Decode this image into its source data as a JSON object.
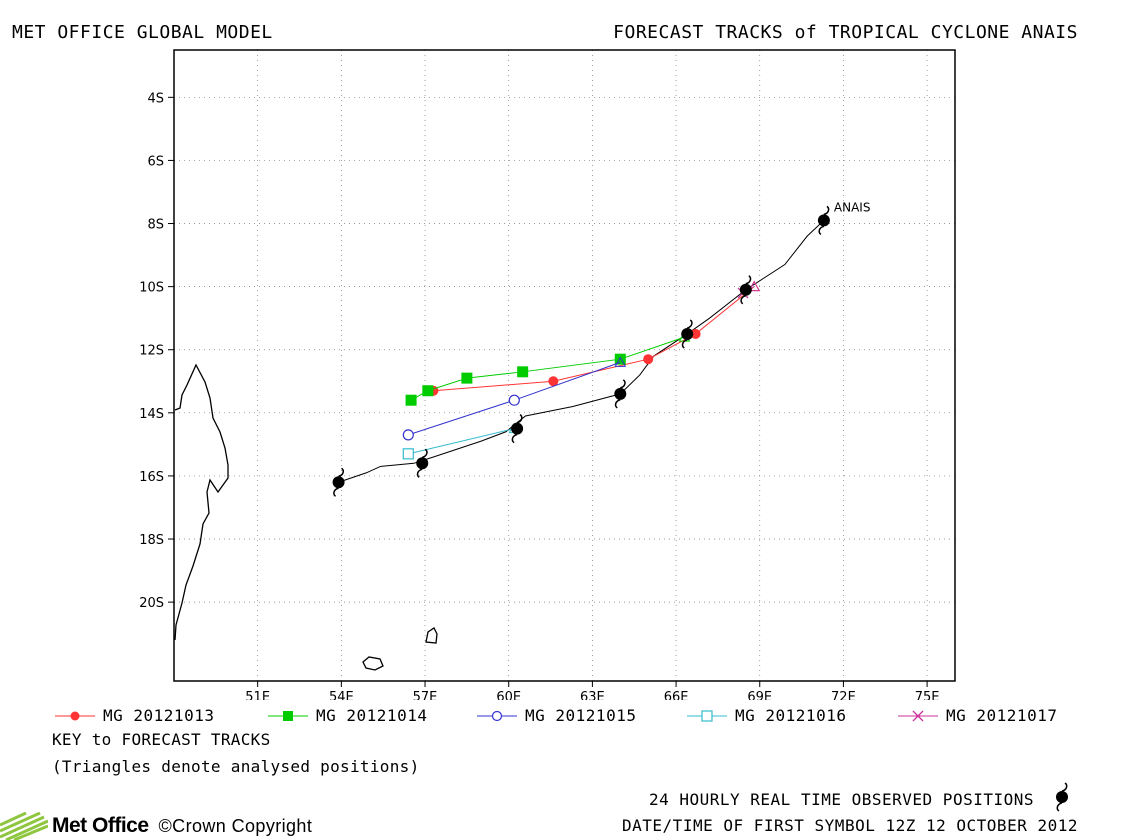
{
  "header": {
    "left_title": "MET OFFICE GLOBAL MODEL",
    "right_title": "FORECAST TRACKS of TROPICAL CYCLONE ANAIS"
  },
  "legend": [
    {
      "label": "MG 20121013",
      "color": "#ff3333",
      "marker": "filled-circle"
    },
    {
      "label": "MG 20121014",
      "color": "#00cc00",
      "marker": "filled-square"
    },
    {
      "label": "MG 20121015",
      "color": "#3333cc",
      "marker": "open-circle"
    },
    {
      "label": "MG 20121016",
      "color": "#33bbcc",
      "marker": "open-square"
    },
    {
      "label": "MG 20121017",
      "color": "#cc3399",
      "marker": "x"
    }
  ],
  "key": {
    "title": "KEY to FORECAST TRACKS",
    "note": "(Triangles denote analysed positions)"
  },
  "footer": {
    "observed_label": "24 HOURLY REAL TIME OBSERVED POSITIONS",
    "date_label": "DATE/TIME OF FIRST SYMBOL 12Z 12 OCTOBER 2012",
    "logo_text": "Met Office",
    "copyright": "©Crown Copyright"
  },
  "chart_data": {
    "type": "scatter",
    "title": "FORECAST TRACKS of TROPICAL CYCLONE ANAIS",
    "xlim": [
      48,
      76
    ],
    "ylim": [
      -22.5,
      -2.5
    ],
    "x_ticks": [
      51,
      54,
      57,
      60,
      63,
      66,
      69,
      72,
      75
    ],
    "x_tick_labels": [
      "51E",
      "54E",
      "57E",
      "60E",
      "63E",
      "66E",
      "69E",
      "72E",
      "75E"
    ],
    "y_ticks": [
      -4,
      -6,
      -8,
      -10,
      -12,
      -14,
      -16,
      -18,
      -20
    ],
    "y_tick_labels": [
      "4S",
      "6S",
      "8S",
      "10S",
      "12S",
      "14S",
      "16S",
      "18S",
      "20S"
    ],
    "grid": true,
    "storm_label": "ANAIS",
    "observed_track": [
      [
        71.3,
        -7.9
      ],
      [
        70.7,
        -8.4
      ],
      [
        69.9,
        -9.3
      ],
      [
        68.5,
        -10.1
      ],
      [
        67.2,
        -11.0
      ],
      [
        66.4,
        -11.5
      ],
      [
        65.2,
        -12.2
      ],
      [
        64.7,
        -12.8
      ],
      [
        64.0,
        -13.4
      ],
      [
        62.3,
        -13.8
      ],
      [
        60.6,
        -14.1
      ],
      [
        59.9,
        -14.6
      ],
      [
        59.0,
        -14.9
      ],
      [
        57.3,
        -15.4
      ],
      [
        56.6,
        -15.6
      ],
      [
        55.4,
        -15.7
      ],
      [
        54.9,
        -15.9
      ],
      [
        53.9,
        -16.2
      ]
    ],
    "observed_positions": [
      [
        71.3,
        -7.9
      ],
      [
        68.5,
        -10.1
      ],
      [
        66.4,
        -11.5
      ],
      [
        64.0,
        -13.4
      ],
      [
        60.3,
        -14.5
      ],
      [
        56.9,
        -15.6
      ],
      [
        53.9,
        -16.2
      ]
    ],
    "series": [
      {
        "name": "MG 20121013",
        "points": [
          [
            68.8,
            -10.0
          ],
          [
            66.7,
            -11.5
          ],
          [
            65.0,
            -12.3
          ],
          [
            61.6,
            -13.0
          ],
          [
            57.3,
            -13.3
          ]
        ]
      },
      {
        "name": "MG 20121014",
        "points": [
          [
            66.3,
            -11.6
          ],
          [
            64.0,
            -12.3
          ],
          [
            60.5,
            -12.7
          ],
          [
            58.5,
            -12.9
          ],
          [
            57.1,
            -13.3
          ],
          [
            56.5,
            -13.6
          ]
        ]
      },
      {
        "name": "MG 20121015",
        "points": [
          [
            64.0,
            -12.4
          ],
          [
            60.2,
            -13.6
          ],
          [
            56.4,
            -14.7
          ]
        ]
      },
      {
        "name": "MG 20121016",
        "points": [
          [
            60.2,
            -14.5
          ],
          [
            56.4,
            -15.3
          ]
        ]
      },
      {
        "name": "MG 20121017",
        "points": [
          [
            68.8,
            -10.0
          ],
          [
            68.4,
            -10.2
          ]
        ]
      }
    ]
  }
}
